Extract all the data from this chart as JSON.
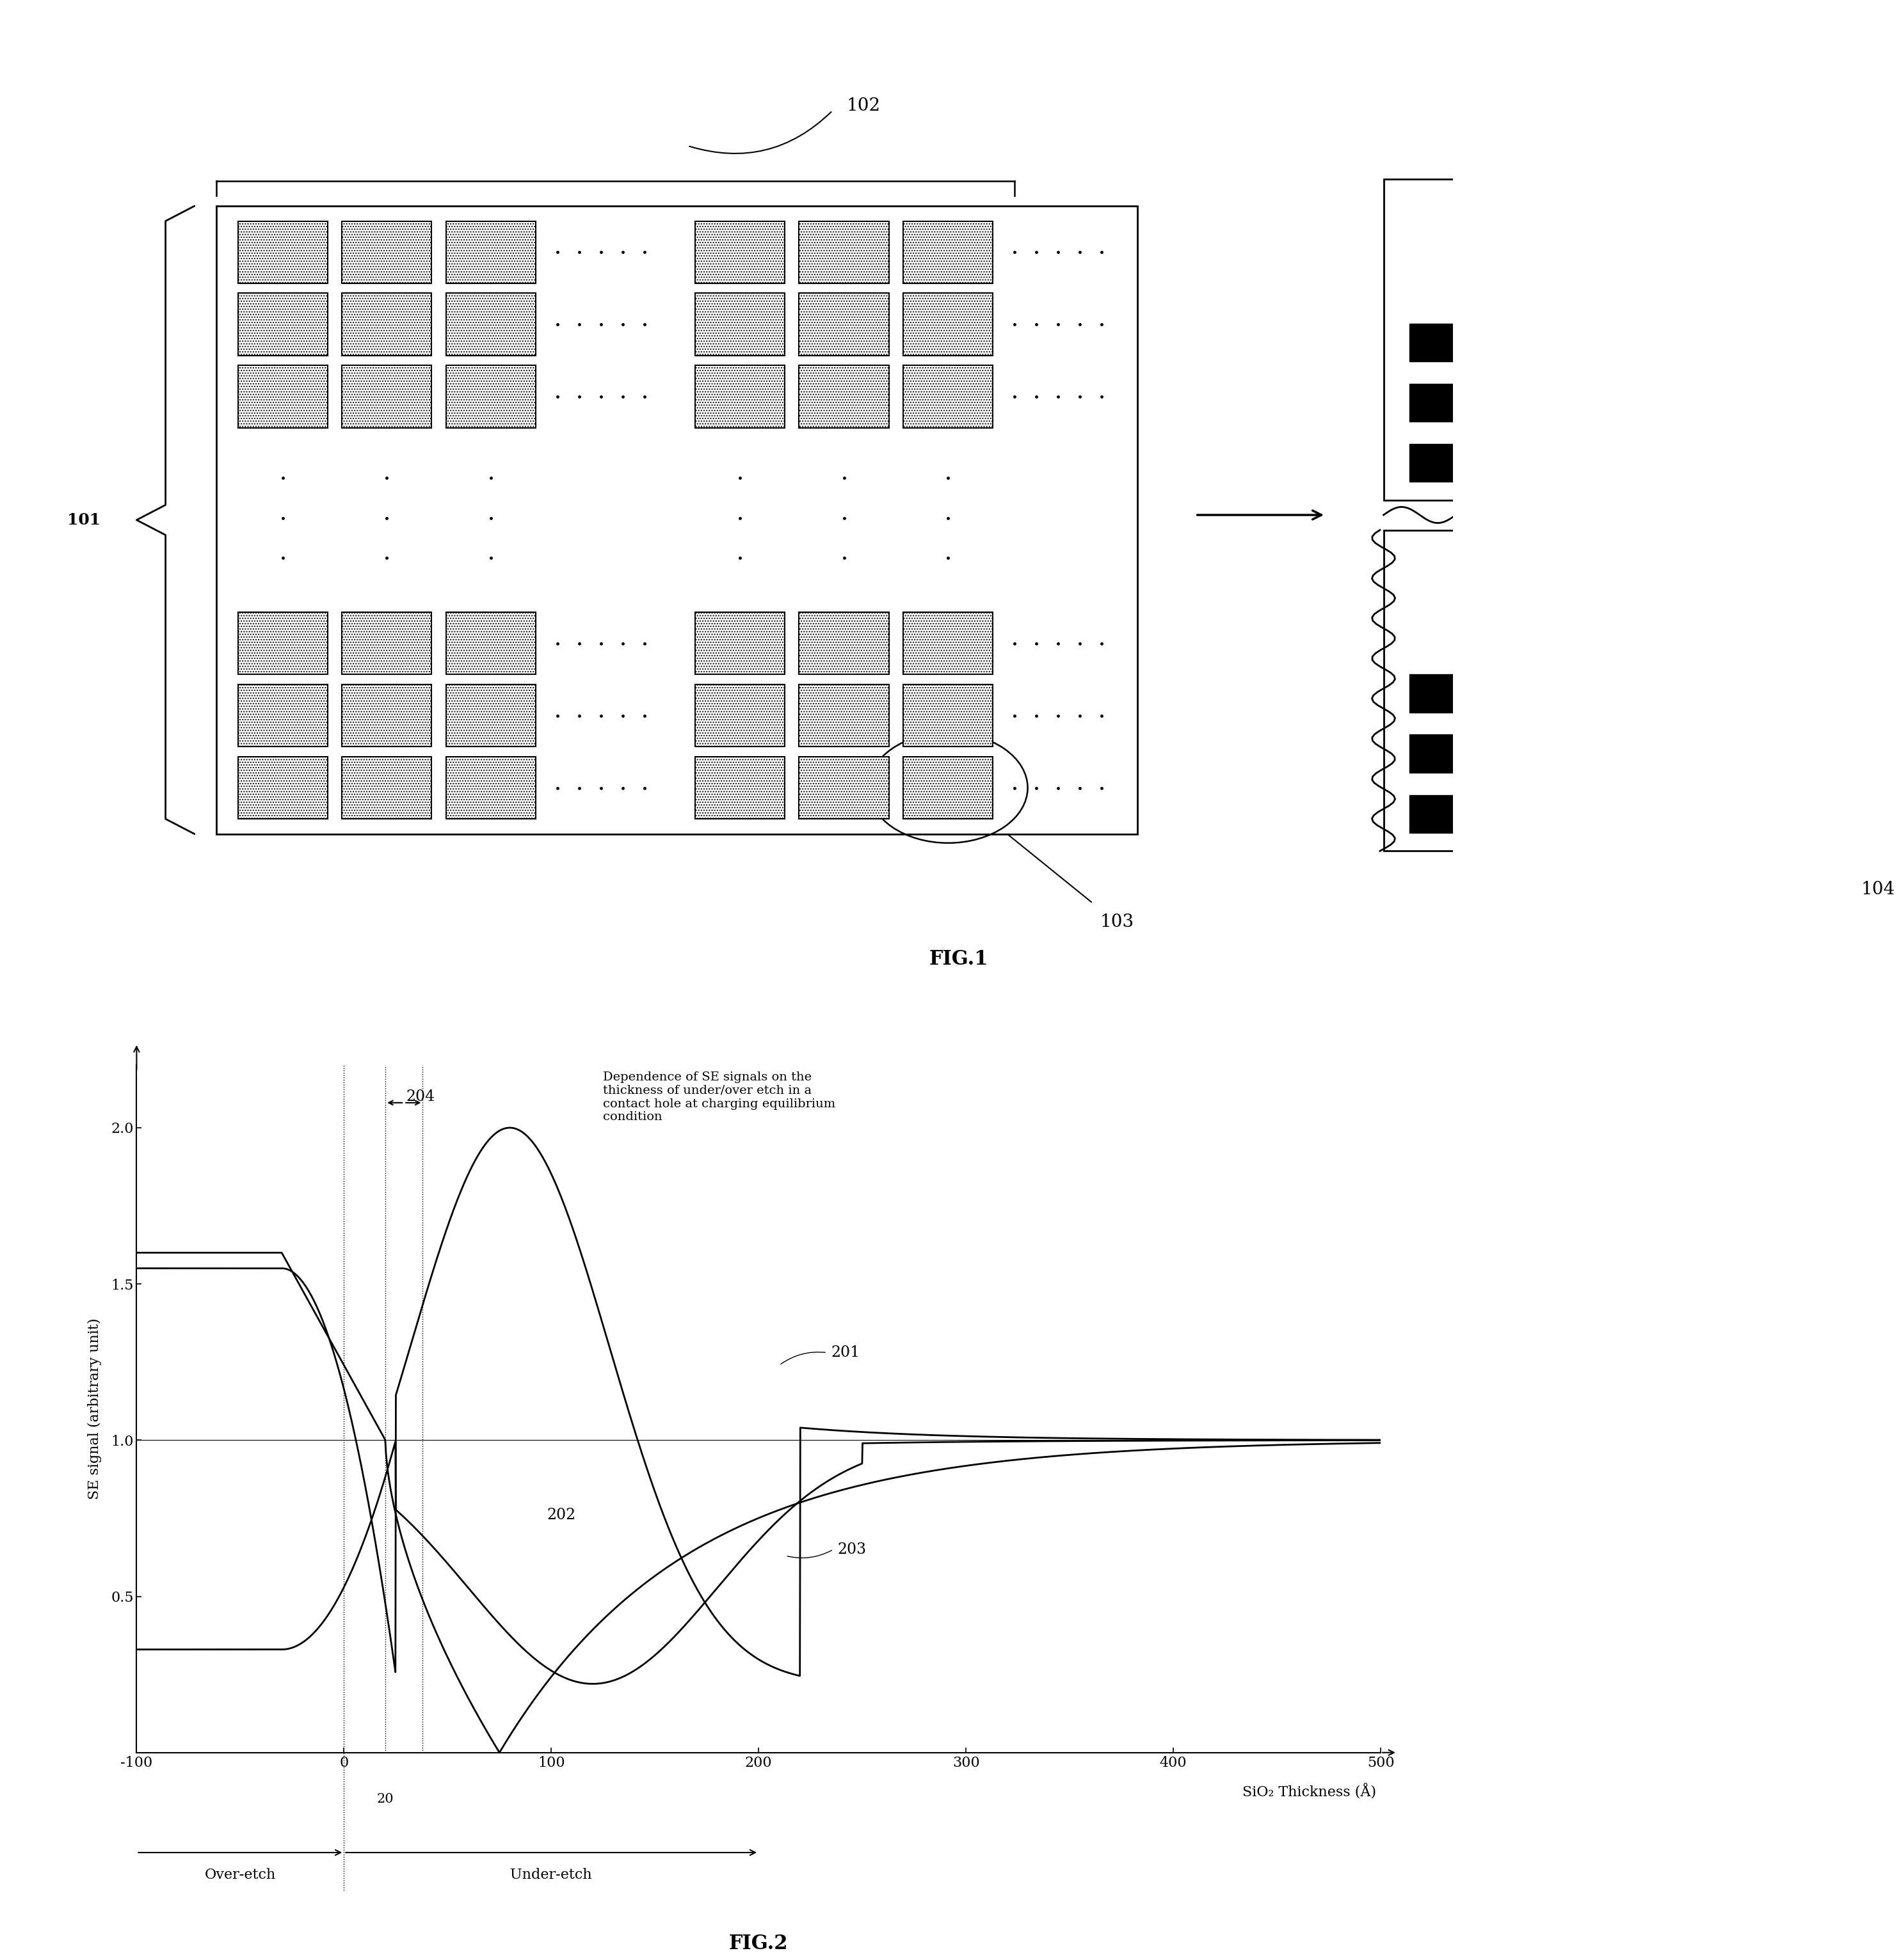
{
  "fig_width": 22.6,
  "fig_height": 29.04,
  "background_color": "#ffffff",
  "fig1_title": "FIG.1",
  "fig2_title": "FIG.2",
  "label_101": "101",
  "label_102": "102",
  "label_103": "103",
  "label_104": "104",
  "label_201": "201",
  "label_202": "202",
  "label_203": "203",
  "label_204": "204",
  "xlabel": "SiO₂ Thickness (Å)",
  "ylabel": "SE signal (arbitrary unit)",
  "annotation_text": "Dependence of SE signals on the\nthickness of under/over etch in a\ncontact hole at charging equilibrium\ncondition",
  "overetch_label": "Over-etch",
  "underetch_label": "Under-etch",
  "xlim": [
    -100,
    500
  ],
  "ylim": [
    0,
    2.2
  ],
  "yticks": [
    0.5,
    1.0,
    1.5,
    2.0
  ],
  "xticks_main": [
    -100,
    0,
    100,
    200,
    300,
    400,
    500
  ]
}
